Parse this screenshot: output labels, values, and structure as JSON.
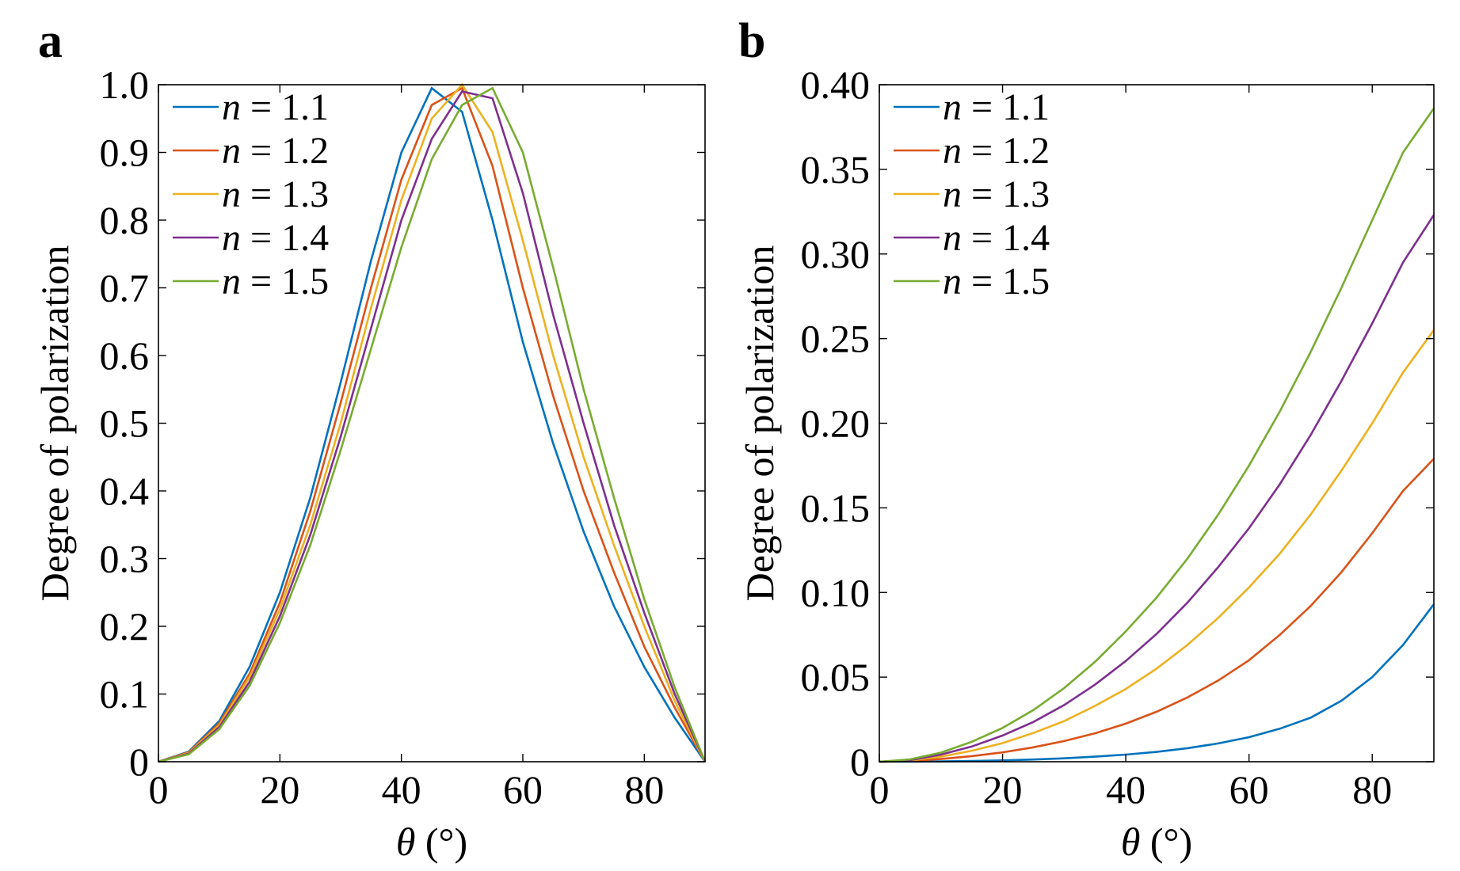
{
  "panels": [
    {
      "panel_label": "a",
      "chart_data": {
        "type": "line",
        "xlabel": "θ (°)",
        "ylabel": "Degree of polarization",
        "xlim": [
          0,
          90
        ],
        "ylim": [
          0,
          1.0
        ],
        "xticks": [
          0,
          20,
          40,
          60,
          80
        ],
        "xtick_labels": [
          "0",
          "20",
          "40",
          "60",
          "80"
        ],
        "yticks": [
          0,
          0.1,
          0.2,
          0.3,
          0.4,
          0.5,
          0.6,
          0.7,
          0.8,
          0.9,
          1.0
        ],
        "ytick_labels": [
          "0",
          "0.1",
          "0.2",
          "0.3",
          "0.4",
          "0.5",
          "0.6",
          "0.7",
          "0.8",
          "0.9",
          "1.0"
        ],
        "grid": false,
        "legend_position": "top-left",
        "x": [
          0,
          5,
          10,
          15,
          20,
          25,
          30,
          35,
          40,
          45,
          50,
          55,
          60,
          65,
          70,
          75,
          80,
          85,
          90
        ],
        "series": [
          {
            "name": "n = 1.1",
            "color": "#0072BD",
            "values": [
              0,
              0.015,
              0.06,
              0.14,
              0.25,
              0.39,
              0.56,
              0.74,
              0.9,
              0.995,
              0.96,
              0.8,
              0.62,
              0.47,
              0.34,
              0.23,
              0.14,
              0.065,
              0
            ]
          },
          {
            "name": "n = 1.2",
            "color": "#D95319",
            "values": [
              0,
              0.014,
              0.057,
              0.13,
              0.235,
              0.37,
              0.53,
              0.7,
              0.86,
              0.97,
              0.995,
              0.88,
              0.7,
              0.54,
              0.4,
              0.28,
              0.17,
              0.08,
              0
            ]
          },
          {
            "name": "n = 1.3",
            "color": "#EDB120",
            "values": [
              0,
              0.013,
              0.054,
              0.125,
              0.225,
              0.35,
              0.5,
              0.67,
              0.83,
              0.95,
              1.0,
              0.93,
              0.77,
              0.6,
              0.45,
              0.32,
              0.2,
              0.09,
              0
            ]
          },
          {
            "name": "n = 1.4",
            "color": "#7E2F8E",
            "values": [
              0,
              0.012,
              0.051,
              0.118,
              0.215,
              0.335,
              0.48,
              0.64,
              0.8,
              0.92,
              0.99,
              0.98,
              0.84,
              0.66,
              0.5,
              0.35,
              0.22,
              0.1,
              0
            ]
          },
          {
            "name": "n = 1.5",
            "color": "#77AC30",
            "values": [
              0,
              0.011,
              0.048,
              0.112,
              0.205,
              0.32,
              0.46,
              0.61,
              0.76,
              0.89,
              0.97,
              0.995,
              0.9,
              0.73,
              0.55,
              0.39,
              0.24,
              0.11,
              0
            ]
          }
        ]
      }
    },
    {
      "panel_label": "b",
      "chart_data": {
        "type": "line",
        "xlabel": "θ (°)",
        "ylabel": "Degree of polarization",
        "xlim": [
          0,
          90
        ],
        "ylim": [
          0,
          0.4
        ],
        "xticks": [
          0,
          20,
          40,
          60,
          80
        ],
        "xtick_labels": [
          "0",
          "20",
          "40",
          "60",
          "80"
        ],
        "yticks": [
          0,
          0.05,
          0.1,
          0.15,
          0.2,
          0.25,
          0.3,
          0.35,
          0.4
        ],
        "ytick_labels": [
          "0",
          "0.05",
          "0.10",
          "0.15",
          "0.20",
          "0.25",
          "0.30",
          "0.35",
          "0.40"
        ],
        "grid": false,
        "legend_position": "top-left",
        "x": [
          0,
          5,
          10,
          15,
          20,
          25,
          30,
          35,
          40,
          45,
          50,
          55,
          60,
          65,
          70,
          75,
          80,
          85,
          90
        ],
        "series": [
          {
            "name": "n = 1.1",
            "color": "#0072BD",
            "values": [
              0,
              0.0001,
              0.0002,
              0.0004,
              0.0008,
              0.0013,
              0.002,
              0.003,
              0.0042,
              0.0058,
              0.008,
              0.0108,
              0.0145,
              0.0195,
              0.026,
              0.036,
              0.05,
              0.069,
              0.093
            ]
          },
          {
            "name": "n = 1.2",
            "color": "#D95319",
            "values": [
              0,
              0.0005,
              0.0016,
              0.0033,
              0.0055,
              0.0085,
              0.0122,
              0.0168,
              0.0225,
              0.0295,
              0.038,
              0.048,
              0.06,
              0.075,
              0.092,
              0.112,
              0.135,
              0.16,
              0.179
            ]
          },
          {
            "name": "n = 1.3",
            "color": "#EDB120",
            "values": [
              0,
              0.0008,
              0.003,
              0.0065,
              0.011,
              0.017,
              0.024,
              0.033,
              0.043,
              0.055,
              0.069,
              0.085,
              0.103,
              0.123,
              0.146,
              0.172,
              0.2,
              0.23,
              0.255
            ]
          },
          {
            "name": "n = 1.4",
            "color": "#7E2F8E",
            "values": [
              0,
              0.001,
              0.0042,
              0.009,
              0.0155,
              0.0235,
              0.0335,
              0.0455,
              0.0595,
              0.0755,
              0.094,
              0.115,
              0.138,
              0.164,
              0.193,
              0.225,
              0.259,
              0.295,
              0.323
            ]
          },
          {
            "name": "n = 1.5",
            "color": "#77AC30",
            "values": [
              0,
              0.0014,
              0.0054,
              0.0118,
              0.02,
              0.0305,
              0.0435,
              0.059,
              0.077,
              0.097,
              0.12,
              0.146,
              0.175,
              0.207,
              0.242,
              0.28,
              0.32,
              0.36,
              0.386
            ]
          }
        ]
      }
    }
  ]
}
